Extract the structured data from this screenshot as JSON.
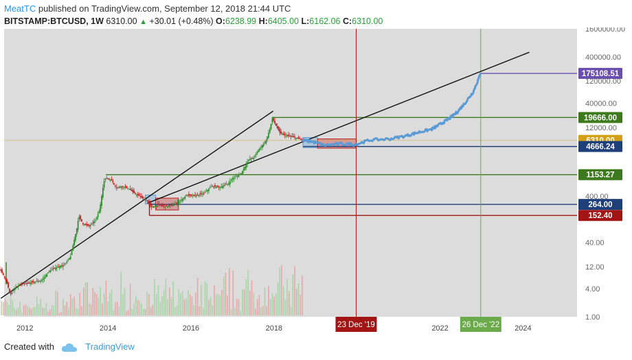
{
  "header": {
    "author": "MeatTC",
    "published_text": " published on TradingView.com, September 12, 2018 21:44 UTC",
    "symbol": "BITSTAMP:BTCUSD, 1W",
    "price": "6310.00",
    "change": "+30.01 (+0.48%)",
    "open_label": "O:",
    "open": "6238.99",
    "high_label": "H:",
    "high": "6405.00",
    "low_label": "L:",
    "low": "6162.06",
    "close_label": "C:",
    "close": "6310.00"
  },
  "footer": {
    "created_with": "Created with",
    "brand": "TradingView"
  },
  "colors": {
    "panel_bg": "#dcdcdc",
    "up": "#2e8b2e",
    "down": "#c02020",
    "projection": "#5b9bd5",
    "green_level": "#3d7a1e",
    "blue_level": "#1f3f7a",
    "red_level": "#a31515",
    "purple_level": "#6a4fb0",
    "gold_level": "#d4a017"
  },
  "chart_data": {
    "type": "line",
    "scale": "log",
    "ylim": [
      1,
      1600000
    ],
    "xlim": [
      2011.5,
      2025.3
    ],
    "y_ticks": [
      1.0,
      4.0,
      12.0,
      40.0,
      400.0,
      12000.0,
      40000.0,
      120000.0,
      400000.0,
      1600000.0
    ],
    "y_tick_labels": [
      "1.00",
      "4.00",
      "12.00",
      "40.00",
      "400.00",
      "12000.00",
      "40000.00",
      "120000.00",
      "400000.00",
      "1600000.00"
    ],
    "x_ticks": [
      2012,
      2014,
      2016,
      2018,
      2022,
      2024
    ],
    "x_tick_labels": [
      "2012",
      "2014",
      "2016",
      "2018",
      "2022",
      "2024"
    ],
    "series": [
      {
        "kind": "price",
        "x": [
          2011.3,
          2011.42,
          2011.55,
          2011.65,
          2011.8,
          2011.95,
          2012.15,
          2012.4,
          2012.6,
          2012.8,
          2012.95,
          2013.1,
          2013.25,
          2013.3,
          2013.4,
          2013.55,
          2013.7,
          2013.8,
          2013.9,
          2013.95,
          2014.1,
          2014.2,
          2014.35,
          2014.5,
          2014.65,
          2014.8,
          2014.95,
          2015.05,
          2015.2,
          2015.4,
          2015.6,
          2015.75,
          2015.9,
          2016.05,
          2016.3,
          2016.5,
          2016.7,
          2016.9,
          2017.0,
          2017.2,
          2017.4,
          2017.5,
          2017.65,
          2017.8,
          2017.9,
          2017.96,
          2018.05,
          2018.15,
          2018.3,
          2018.45,
          2018.6,
          2018.7
        ],
        "y": [
          15,
          10,
          6,
          3,
          4.5,
          5,
          5.5,
          6,
          10,
          12,
          13,
          20,
          80,
          150,
          100,
          90,
          120,
          200,
          800,
          1000,
          850,
          600,
          650,
          580,
          450,
          380,
          310,
          230,
          260,
          240,
          260,
          320,
          420,
          400,
          450,
          650,
          620,
          740,
          950,
          1200,
          2500,
          2600,
          4200,
          6000,
          11000,
          19000,
          13000,
          9000,
          8000,
          7500,
          6800,
          6310
        ]
      },
      {
        "kind": "projection",
        "x": [
          2018.7,
          2018.9,
          2019.2,
          2019.6,
          2019.98,
          2020.3,
          2020.8,
          2021.2,
          2021.5,
          2021.8,
          2022.0,
          2022.2,
          2022.4,
          2022.6,
          2022.8,
          2022.98
        ],
        "y": [
          6310,
          6000,
          5000,
          5300,
          5200,
          6400,
          6800,
          8000,
          9500,
          11000,
          14000,
          18000,
          25000,
          40000,
          70000,
          175108.51
        ]
      }
    ],
    "trendlines": [
      {
        "x": [
          2011.42,
          2017.98
        ],
        "y": [
          2.5,
          27000
        ]
      },
      {
        "x": [
          2014.95,
          2024.15
        ],
        "y": [
          280,
          500000
        ]
      }
    ],
    "levels": [
      {
        "value": 175108.51,
        "label": "175108.51",
        "color": "#6a4fb0"
      },
      {
        "value": 19666.0,
        "label": "19666.00",
        "color": "#3d7a1e"
      },
      {
        "value": 6310.0,
        "label": "6310.00",
        "color": "#d4a017"
      },
      {
        "value": 4666.24,
        "label": "4666.24",
        "color": "#1f3f7a"
      },
      {
        "value": 1153.27,
        "label": "1153.27",
        "color": "#3d7a1e"
      },
      {
        "value": 264.0,
        "label": "264.00",
        "color": "#1f3f7a"
      },
      {
        "value": 152.4,
        "label": "152.40",
        "color": "#a31515"
      }
    ],
    "vertical_markers": [
      {
        "x": 2019.98,
        "label": "23 Dec '19",
        "color": "#a31515"
      },
      {
        "x": 2022.98,
        "label": "26 Dec '22",
        "color": "#6aaa4a"
      }
    ]
  }
}
